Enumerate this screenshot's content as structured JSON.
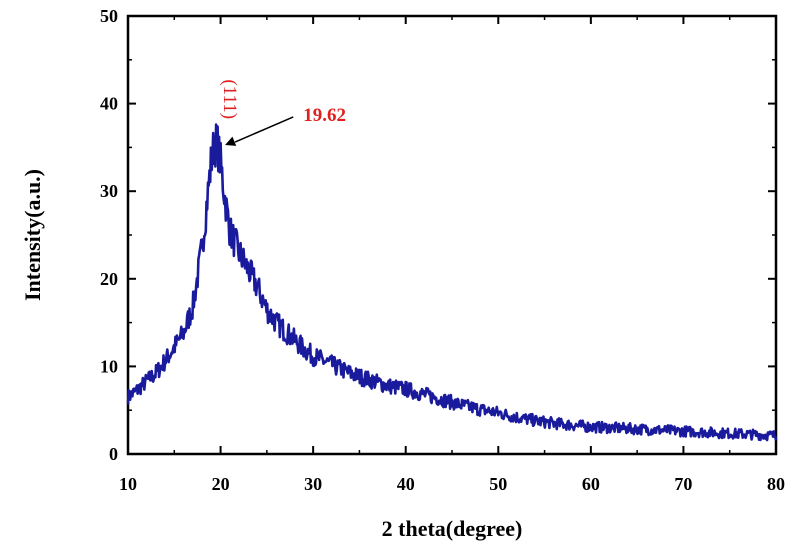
{
  "chart_data": {
    "type": "line",
    "xlabel": "2 theta(degree)",
    "ylabel": "Intensity(a.u.)",
    "xlim": [
      10,
      80
    ],
    "ylim": [
      0,
      50
    ],
    "xticks": [
      10,
      20,
      30,
      40,
      50,
      60,
      70,
      80
    ],
    "yticks": [
      0,
      10,
      20,
      30,
      40,
      50
    ],
    "grid": false,
    "legend": "none",
    "line_color": "#1a1a9c",
    "annotations": [
      {
        "text": "(111)",
        "x": 19.6,
        "y": 40.5,
        "color": "#e02020",
        "rotated": true
      },
      {
        "text": "19.62",
        "x": 19.62,
        "y": 35.5,
        "color": "#e02020",
        "arrow_from": [
          28.5,
          38.7
        ]
      }
    ],
    "series": [
      {
        "x": [
          10,
          11,
          12,
          13,
          14,
          15,
          16,
          17,
          18,
          18.5,
          19,
          19.3,
          19.62,
          20,
          20.5,
          21,
          22,
          23,
          24,
          25,
          26,
          27,
          28,
          29,
          30,
          32,
          34,
          36,
          38,
          40,
          42,
          44,
          46,
          48,
          50,
          52,
          54,
          56,
          58,
          60,
          62,
          64,
          66,
          68,
          70,
          72,
          74,
          76,
          78,
          80
        ],
        "y": [
          6.5,
          7.3,
          8.3,
          9.2,
          10.6,
          12.2,
          13.8,
          16.8,
          23.5,
          28.5,
          33.5,
          35.2,
          35.6,
          33.2,
          29,
          25.5,
          23,
          21,
          19,
          16.5,
          15,
          14,
          13,
          12,
          11.2,
          10.2,
          9.2,
          8.5,
          7.8,
          7.4,
          6.8,
          6.2,
          5.6,
          5.1,
          4.7,
          4.2,
          3.8,
          3.5,
          3.3,
          3.1,
          3.0,
          2.9,
          2.8,
          2.7,
          2.6,
          2.5,
          2.4,
          2.3,
          2.2,
          2.1
        ]
      }
    ]
  }
}
